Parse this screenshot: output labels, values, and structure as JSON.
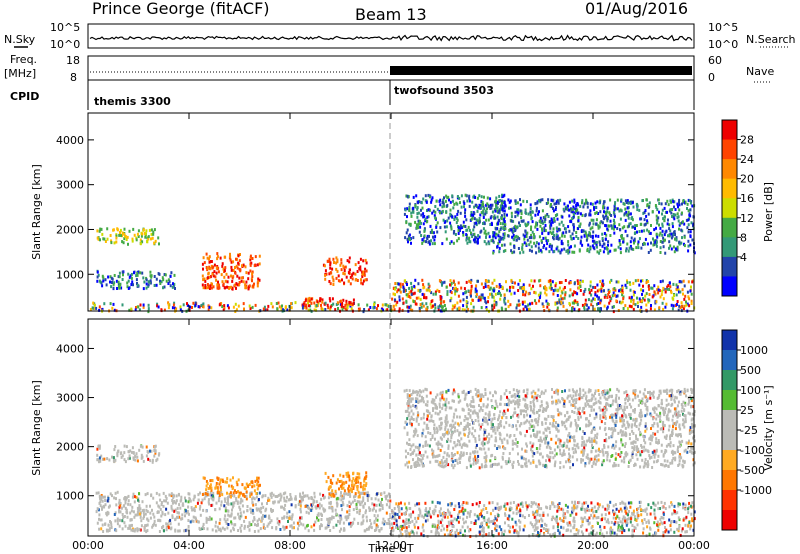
{
  "header": {
    "station": "Prince George (fitACF)",
    "beam": "Beam 13",
    "date": "01/Aug/2016"
  },
  "side_labels": {
    "nsky": "N.Sky",
    "nsearch": "N.Search",
    "freq_line1": "Freq.",
    "freq_line2": "[MHz]",
    "nave": "Nave",
    "cpid": "CPID"
  },
  "noise_axis": {
    "left_ticks": [
      "10^5",
      "10^0"
    ],
    "right_ticks": [
      "10^5",
      "10^0"
    ]
  },
  "freq_axis": {
    "left_ticks": [
      "18",
      "8"
    ],
    "right_ticks": [
      "60",
      "0"
    ]
  },
  "cpid_segments": [
    {
      "name": "themis 3300",
      "start_hour": 0,
      "end_hour": 12
    },
    {
      "name": "twofsound 3503",
      "start_hour": 12,
      "end_hour": 24
    }
  ],
  "time_axis": {
    "label": "Time UT",
    "ticks": [
      "00:00",
      "04:00",
      "08:00",
      "12:00",
      "16:00",
      "20:00",
      "00:00"
    ],
    "tick_hours": [
      0,
      4,
      8,
      12,
      16,
      20,
      24
    ]
  },
  "colorbars": {
    "power": {
      "title": "Power [dB]",
      "labels": [
        "28",
        "24",
        "20",
        "16",
        "12",
        "8",
        "4"
      ],
      "colors": [
        "#ee0000",
        "#ff4400",
        "#ff8800",
        "#ffbb00",
        "#ccdd00",
        "#44aa44",
        "#339977",
        "#2244aa",
        "#0000ff"
      ]
    },
    "velocity": {
      "title": "Velocity [m s⁻¹]",
      "labels": [
        "1000",
        "500",
        "100",
        "25",
        "-25",
        "-100",
        "-500",
        "-1000"
      ],
      "colors": [
        "#1133aa",
        "#2266bb",
        "#339966",
        "#55bb33",
        "#bbbbb6",
        "#bbbbb6",
        "#ffaa22",
        "#ff7700",
        "#ff3300",
        "#ee0000"
      ]
    }
  },
  "chart_data": [
    {
      "type": "heatmap",
      "title": "",
      "ylabel": "Slant Range [km]",
      "xlabel": "",
      "xlim": [
        0,
        24
      ],
      "ylim": [
        180,
        4600
      ],
      "yticks": [
        "4000",
        "3000",
        "2000",
        "1000"
      ],
      "ytick_values": [
        4000,
        3000,
        2000,
        1000
      ],
      "colorbar": "Power [dB]",
      "regions": [
        {
          "t0": 0.3,
          "t1": 2.8,
          "r0": 1700,
          "r1": 2050,
          "level": "mid"
        },
        {
          "t0": 0.3,
          "t1": 3.5,
          "r0": 700,
          "r1": 1100,
          "level": "low"
        },
        {
          "t0": 0.0,
          "t1": 12.0,
          "r0": 200,
          "r1": 400,
          "level": "mixed"
        },
        {
          "t0": 4.5,
          "t1": 6.8,
          "r0": 700,
          "r1": 1500,
          "level": "high"
        },
        {
          "t0": 8.5,
          "t1": 10.5,
          "r0": 300,
          "r1": 500,
          "level": "high"
        },
        {
          "t0": 9.3,
          "t1": 11.0,
          "r0": 800,
          "r1": 1400,
          "level": "high"
        },
        {
          "t0": 12.0,
          "t1": 24.0,
          "r0": 200,
          "r1": 900,
          "level": "mixed"
        },
        {
          "t0": 12.5,
          "t1": 16.5,
          "r0": 1700,
          "r1": 2800,
          "level": "low"
        },
        {
          "t0": 16.0,
          "t1": 24.0,
          "r0": 1500,
          "r1": 2700,
          "level": "low"
        }
      ]
    },
    {
      "type": "heatmap",
      "title": "",
      "ylabel": "Slant Range [km]",
      "xlabel": "Time UT",
      "xlim": [
        0,
        24
      ],
      "ylim": [
        180,
        4600
      ],
      "yticks": [
        "4000",
        "3000",
        "2000",
        "1000"
      ],
      "ytick_values": [
        4000,
        3000,
        2000,
        1000
      ],
      "colorbar": "Velocity [m s⁻¹]",
      "regions": [
        {
          "t0": 0.3,
          "t1": 2.8,
          "r0": 1700,
          "r1": 2050,
          "level": "ground"
        },
        {
          "t0": 0.3,
          "t1": 12.0,
          "r0": 300,
          "r1": 1100,
          "level": "ground"
        },
        {
          "t0": 4.5,
          "t1": 6.8,
          "r0": 1000,
          "r1": 1400,
          "level": "neg"
        },
        {
          "t0": 9.3,
          "t1": 11.0,
          "r0": 1000,
          "r1": 1500,
          "level": "neg"
        },
        {
          "t0": 12.0,
          "t1": 24.0,
          "r0": 200,
          "r1": 900,
          "level": "mixed"
        },
        {
          "t0": 12.5,
          "t1": 24.0,
          "r0": 1600,
          "r1": 3200,
          "level": "ground"
        }
      ]
    }
  ]
}
